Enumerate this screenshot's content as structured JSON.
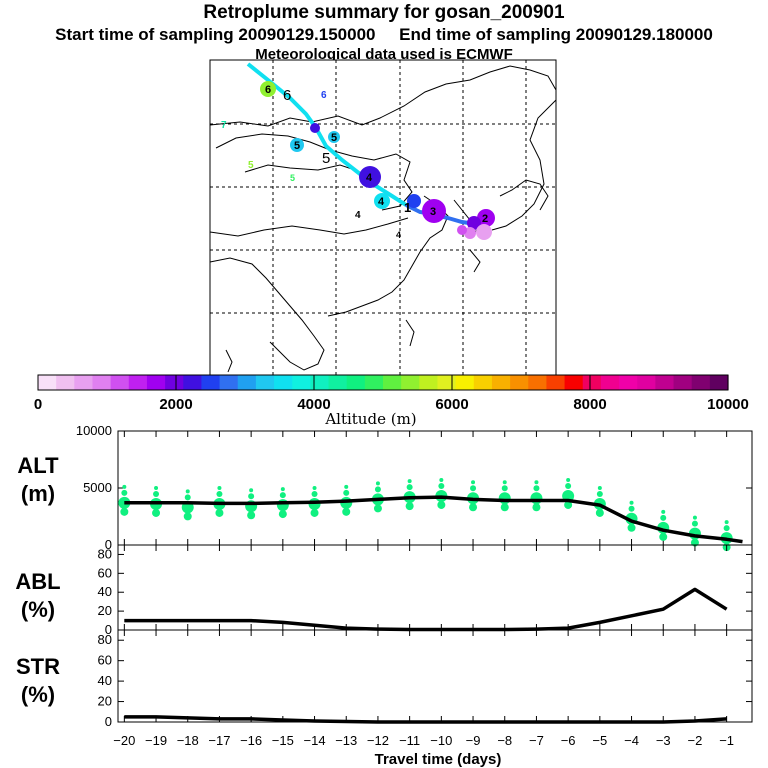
{
  "header": {
    "title": "Retroplume summary for gosan_200901",
    "start_label": "Start time of sampling 20090129.150000",
    "end_label": "End time of sampling 20090129.180000",
    "met_label": "Meteorological data used is ECMWF"
  },
  "colorbar": {
    "ticks": [
      "0",
      "2000",
      "4000",
      "6000",
      "8000",
      "10000"
    ],
    "label": "Altitude (m)",
    "colors": [
      "#f8e0f8",
      "#f0c0f0",
      "#e8a0f0",
      "#e080f0",
      "#d050f0",
      "#c020f0",
      "#a000f0",
      "#7000e0",
      "#4010e0",
      "#2040f0",
      "#3070f0",
      "#20a0f0",
      "#20c8f0",
      "#10e0f0",
      "#10f0e0",
      "#10f0c0",
      "#10f0a0",
      "#10f080",
      "#30f060",
      "#60f040",
      "#90f030",
      "#c0f020",
      "#e0f020",
      "#f8f000",
      "#f8d000",
      "#f8b000",
      "#f89000",
      "#f87000",
      "#f84000",
      "#f80000",
      "#f00060",
      "#f00090",
      "#f000a8",
      "#e000a0",
      "#c00090",
      "#a00080",
      "#800070",
      "#600060"
    ]
  },
  "map_markers": [
    "6",
    "6",
    "6",
    "7",
    "5",
    "5",
    "5",
    "5",
    "5",
    "4",
    "4",
    "4",
    "4",
    "3",
    "2",
    "1"
  ],
  "chart_data": [
    {
      "type": "line",
      "name": "ALT",
      "ylabel": "ALT",
      "yunit": "(m)",
      "ylim": [
        0,
        10000
      ],
      "yticks": [
        "10000",
        "5000",
        "0"
      ],
      "x": [
        -20,
        -19,
        -18,
        -17,
        -16,
        -15,
        -14,
        -13,
        -12,
        -11,
        -10,
        -9,
        -8,
        -7,
        -6,
        -5,
        -4,
        -3,
        -2,
        -1,
        -0.5
      ],
      "values": [
        3700,
        3700,
        3700,
        3650,
        3650,
        3700,
        3750,
        3850,
        4000,
        4150,
        4200,
        4000,
        3900,
        3900,
        3900,
        3500,
        2100,
        1300,
        800,
        500,
        300
      ],
      "clusters": [
        3700,
        3600,
        3300,
        3600,
        3400,
        3500,
        3600,
        3700,
        4000,
        4200,
        4300,
        4100,
        4100,
        4100,
        4300,
        3600,
        2300,
        1500,
        1000,
        600
      ]
    },
    {
      "type": "line",
      "name": "ABL",
      "ylabel": "ABL",
      "yunit": "(%)",
      "ylim": [
        0,
        90
      ],
      "yticks": [
        "80",
        "60",
        "40",
        "20",
        "0"
      ],
      "x": [
        -20,
        -19,
        -18,
        -17,
        -16,
        -15,
        -14,
        -13,
        -12,
        -11,
        -10,
        -9,
        -8,
        -7,
        -6,
        -5,
        -4,
        -3,
        -2,
        -1
      ],
      "values": [
        10,
        10,
        10,
        10,
        10,
        8,
        5,
        2,
        1,
        0.5,
        0.5,
        0.5,
        0.5,
        1,
        2,
        8,
        15,
        22,
        43,
        22
      ]
    },
    {
      "type": "line",
      "name": "STR",
      "ylabel": "STR",
      "yunit": "(%)",
      "ylim": [
        0,
        90
      ],
      "yticks": [
        "80",
        "60",
        "40",
        "20",
        "0"
      ],
      "x": [
        -20,
        -19,
        -18,
        -17,
        -16,
        -15,
        -14,
        -13,
        -12,
        -11,
        -10,
        -9,
        -8,
        -7,
        -6,
        -5,
        -4,
        -3,
        -2,
        -1
      ],
      "values": [
        5,
        5,
        4,
        3,
        3,
        2,
        1,
        0.5,
        0,
        0,
        0,
        0,
        0,
        0,
        0,
        0,
        0,
        0,
        1,
        3
      ]
    }
  ],
  "xaxis": {
    "ticks": [
      "−20",
      "−19",
      "−18",
      "−17",
      "−16",
      "−15",
      "−14",
      "−13",
      "−12",
      "−11",
      "−10",
      "−9",
      "−8",
      "−7",
      "−6",
      "−5",
      "−4",
      "−3",
      "−2",
      "−1"
    ],
    "label": "Travel time (days)"
  }
}
